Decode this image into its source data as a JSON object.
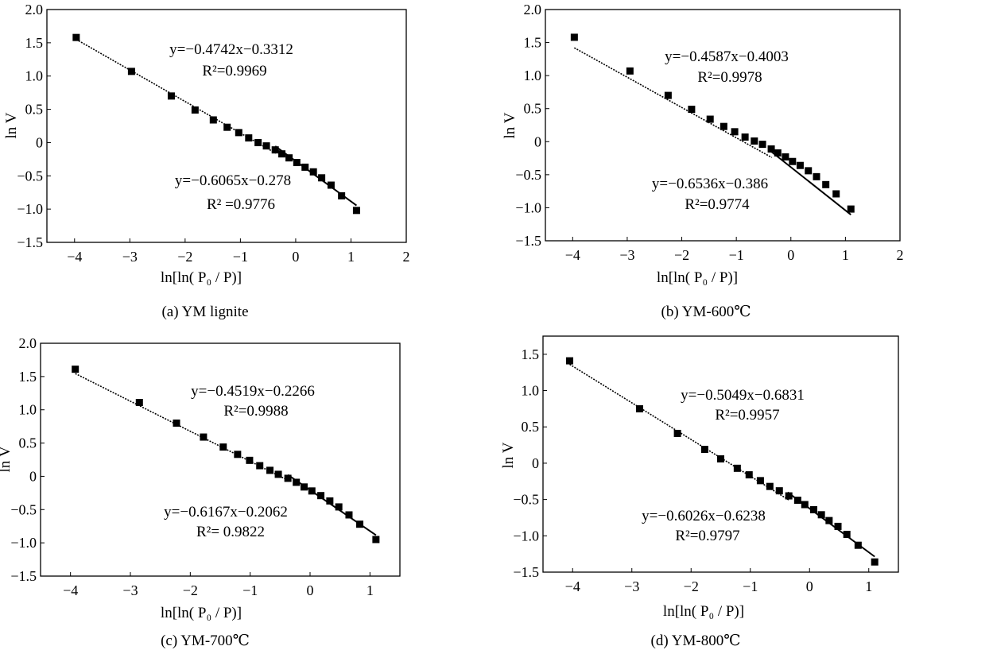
{
  "chart_data": [
    {
      "type": "scatter",
      "caption": "(a) YM lignite",
      "xlabel": "ln[ln( P₀ / P)]",
      "ylabel": "ln V",
      "xlim": [
        -4.5,
        2
      ],
      "ylim": [
        -1.5,
        2.0
      ],
      "xticks": [
        -4,
        -3,
        -2,
        -1,
        0,
        1,
        2
      ],
      "yticks": [
        -1.5,
        -1.0,
        -0.5,
        0,
        0.5,
        1.0,
        1.5,
        2.0
      ],
      "ytick_labels": [
        "-1.5",
        "-1.0",
        "-0.5",
        "0",
        "0.5",
        "1.0",
        "1.5",
        "2.0"
      ],
      "x": [
        -3.97,
        -2.97,
        -2.25,
        -1.82,
        -1.49,
        -1.24,
        -1.03,
        -0.85,
        -0.68,
        -0.53,
        -0.37,
        -0.25,
        -0.12,
        0.02,
        0.17,
        0.32,
        0.47,
        0.64,
        0.83,
        1.1
      ],
      "y": [
        1.58,
        1.07,
        0.7,
        0.49,
        0.34,
        0.23,
        0.15,
        0.07,
        0.0,
        -0.05,
        -0.11,
        -0.17,
        -0.23,
        -0.3,
        -0.37,
        -0.44,
        -0.53,
        -0.64,
        -0.8,
        -1.02
      ],
      "fits": [
        {
          "slope": -0.4742,
          "intercept": -0.3312,
          "x_range": [
            -3.97,
            -0.35
          ],
          "style": "dotted",
          "equation": "y=−0.4742x−0.3312",
          "r2": "R²=0.9969"
        },
        {
          "slope": -0.6065,
          "intercept": -0.278,
          "x_range": [
            -0.37,
            1.1
          ],
          "style": "solid",
          "equation": "y=−0.6065x−0.278",
          "r2": "R² =0.9776"
        }
      ]
    },
    {
      "type": "scatter",
      "caption": "(b) YM-600℃",
      "xlabel": "ln[ln( P₀ / P)]",
      "ylabel": "ln V",
      "xlim": [
        -4.5,
        2
      ],
      "ylim": [
        -1.5,
        2.0
      ],
      "xticks": [
        -4,
        -3,
        -2,
        -1,
        0,
        1,
        2
      ],
      "yticks": [
        -1.5,
        -1.0,
        -0.5,
        0,
        0.5,
        1.0,
        1.5,
        2.0
      ],
      "ytick_labels": [
        "-1.5",
        "-1.0",
        "-0.5",
        "0",
        "0.5",
        "1.0",
        "1.5",
        "2.0"
      ],
      "x": [
        -3.97,
        -2.95,
        -2.25,
        -1.82,
        -1.48,
        -1.23,
        -1.03,
        -0.84,
        -0.67,
        -0.52,
        -0.36,
        -0.24,
        -0.1,
        0.03,
        0.17,
        0.32,
        0.47,
        0.64,
        0.83,
        1.1
      ],
      "y": [
        1.58,
        1.07,
        0.7,
        0.49,
        0.34,
        0.23,
        0.15,
        0.07,
        0.01,
        -0.04,
        -0.11,
        -0.17,
        -0.23,
        -0.3,
        -0.36,
        -0.44,
        -0.53,
        -0.65,
        -0.79,
        -1.02
      ],
      "fits": [
        {
          "slope": -0.4587,
          "intercept": -0.4003,
          "x_range": [
            -3.97,
            -0.35
          ],
          "style": "dotted",
          "equation": "y=−0.4587x−0.4003",
          "r2": "R²=0.9978"
        },
        {
          "slope": -0.6536,
          "intercept": -0.386,
          "x_range": [
            -0.37,
            1.1
          ],
          "style": "solid",
          "equation": "y=−0.6536x−0.386",
          "r2": "R²=0.9774"
        }
      ]
    },
    {
      "type": "scatter",
      "caption": "(c) YM-700℃",
      "xlabel": "ln[ln( P₀ / P)]",
      "ylabel": "ln V",
      "xlim": [
        -4.5,
        1.5
      ],
      "ylim": [
        -1.5,
        2.0
      ],
      "xticks": [
        -4,
        -3,
        -2,
        -1,
        0,
        1
      ],
      "yticks": [
        -1.5,
        -1.0,
        -0.5,
        0,
        0.5,
        1.0,
        1.5,
        2.0
      ],
      "ytick_labels": [
        "-1.5",
        "-1.0",
        "-0.5",
        "0",
        "0.5",
        "1.0",
        "1.5",
        "2.0"
      ],
      "x": [
        -3.92,
        -2.85,
        -2.23,
        -1.78,
        -1.45,
        -1.21,
        -1.01,
        -0.84,
        -0.67,
        -0.53,
        -0.37,
        -0.23,
        -0.1,
        0.03,
        0.18,
        0.33,
        0.48,
        0.65,
        0.83,
        1.1
      ],
      "y": [
        1.61,
        1.11,
        0.8,
        0.59,
        0.44,
        0.33,
        0.24,
        0.16,
        0.09,
        0.03,
        -0.03,
        -0.09,
        -0.16,
        -0.22,
        -0.29,
        -0.37,
        -0.46,
        -0.58,
        -0.72,
        -0.95
      ],
      "fits": [
        {
          "slope": -0.4519,
          "intercept": -0.2266,
          "x_range": [
            -3.92,
            -0.35
          ],
          "style": "dotted",
          "equation": "y=−0.4519x−0.2266",
          "r2": "R²=0.9988"
        },
        {
          "slope": -0.6167,
          "intercept": -0.2062,
          "x_range": [
            -0.37,
            1.1
          ],
          "style": "solid",
          "equation": "y=−0.6167x−0.2062",
          "r2": "R²= 0.9822"
        }
      ]
    },
    {
      "type": "scatter",
      "caption": "(d) YM-800℃",
      "xlabel": "ln[ln( P₀ / P)]",
      "ylabel": "ln V",
      "xlim": [
        -4.5,
        1.5
      ],
      "ylim": [
        -1.5,
        1.75
      ],
      "xticks": [
        -4,
        -3,
        -2,
        -1,
        0,
        1
      ],
      "yticks": [
        -1.5,
        -1.0,
        -0.5,
        0,
        0.5,
        1.0,
        1.5
      ],
      "ytick_labels": [
        "-1.5",
        "-1.0",
        "-0.5",
        "0",
        "0.5",
        "1.0",
        "1.5"
      ],
      "x": [
        -4.05,
        -2.87,
        -2.23,
        -1.77,
        -1.5,
        -1.22,
        -1.02,
        -0.83,
        -0.67,
        -0.51,
        -0.35,
        -0.2,
        -0.08,
        0.07,
        0.2,
        0.33,
        0.48,
        0.63,
        0.82,
        1.1
      ],
      "y": [
        1.41,
        0.75,
        0.41,
        0.19,
        0.06,
        -0.07,
        -0.16,
        -0.24,
        -0.32,
        -0.38,
        -0.45,
        -0.51,
        -0.57,
        -0.64,
        -0.71,
        -0.79,
        -0.87,
        -0.98,
        -1.13,
        -1.36
      ],
      "fits": [
        {
          "slope": -0.5049,
          "intercept": -0.6831,
          "x_range": [
            -4.05,
            -0.35
          ],
          "style": "dotted",
          "equation": "y=−0.5049x−0.6831",
          "r2": "R²=0.9957"
        },
        {
          "slope": -0.6026,
          "intercept": -0.6238,
          "x_range": [
            -0.37,
            1.1
          ],
          "style": "solid",
          "equation": "y=−0.6026x−0.6238",
          "r2": "R²=0.9797"
        }
      ]
    }
  ]
}
